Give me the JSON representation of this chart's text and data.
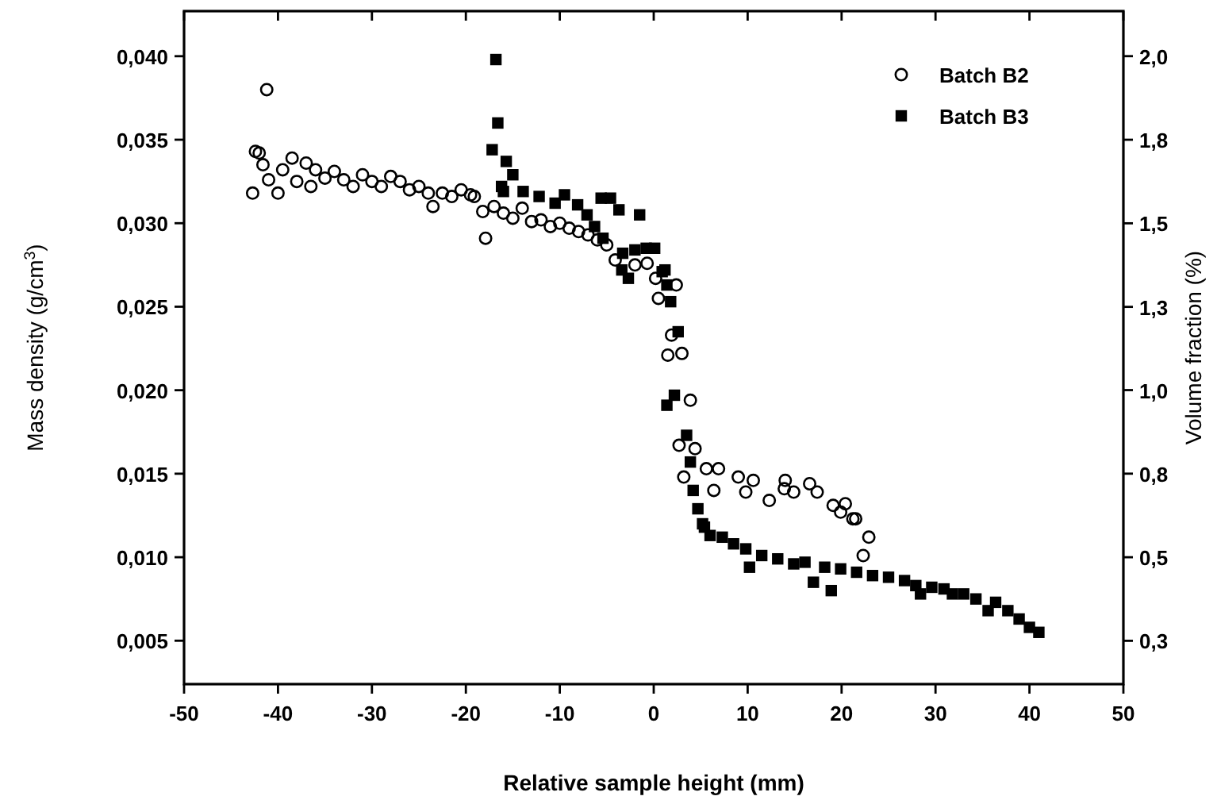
{
  "chart_data": {
    "type": "scatter",
    "xlabel": "Relative sample height (mm)",
    "ylabel": "Mass density (g/cm$^{3}$)",
    "y2label": "Volume fraction (%)",
    "xlim": [
      -50,
      50
    ],
    "xticks": [
      -50,
      -40,
      -30,
      -20,
      -10,
      0,
      10,
      20,
      30,
      40,
      50
    ],
    "ylim": [
      0.0024,
      0.0427
    ],
    "yticks": [
      {
        "value": 0.005,
        "label": "0,005"
      },
      {
        "value": 0.01,
        "label": "0,010"
      },
      {
        "value": 0.015,
        "label": "0,015"
      },
      {
        "value": 0.02,
        "label": "0,020"
      },
      {
        "value": 0.025,
        "label": "0,025"
      },
      {
        "value": 0.03,
        "label": "0,030"
      },
      {
        "value": 0.035,
        "label": "0,035"
      },
      {
        "value": 0.04,
        "label": "0,040"
      }
    ],
    "y2lim": [
      0.174,
      2.131
    ],
    "y2ticks": [
      {
        "value": 0.3,
        "label": "0,3"
      },
      {
        "value": 0.543,
        "label": "0,5"
      },
      {
        "value": 0.786,
        "label": "0,8"
      },
      {
        "value": 1.029,
        "label": "1,0"
      },
      {
        "value": 1.271,
        "label": "1,3"
      },
      {
        "value": 1.514,
        "label": "1,5"
      },
      {
        "value": 1.757,
        "label": "1,8"
      },
      {
        "value": 2.0,
        "label": "2,0"
      }
    ],
    "grid": false,
    "legend": "top right",
    "series": [
      {
        "name": "Batch B2",
        "color": "#000000",
        "marker": "circle",
        "x": [
          -42.7,
          -42.4,
          -42,
          -41.6,
          -41.2,
          -41,
          -40,
          -39.5,
          -38.5,
          -38,
          -37,
          -36.5,
          -36,
          -35,
          -34,
          -33,
          -32,
          -31,
          -30,
          -29,
          -28,
          -27,
          -26,
          -25,
          -24,
          -23.5,
          -22.5,
          -21.5,
          -20.5,
          -19.5,
          -19.1,
          -18.2,
          -17.9,
          -17,
          -16,
          -15,
          -14,
          -13,
          -12,
          -11,
          -10,
          -9,
          -8,
          -7,
          -6,
          -5,
          -4.1,
          -2,
          -0.7,
          0.2,
          0.5,
          2.4,
          1.9,
          1.5,
          3,
          3.9,
          2.7,
          3.2,
          4.4,
          5.6,
          6.4,
          6.9,
          9,
          9.8,
          10.6,
          12.3,
          13.9,
          14,
          14.9,
          16.6,
          17.4,
          19.1,
          19.9,
          20.4,
          21.2,
          21.5,
          22.9,
          22.3
        ],
        "values": [
          0.0318,
          0.0343,
          0.0342,
          0.0335,
          0.038,
          0.0326,
          0.0318,
          0.0332,
          0.0339,
          0.0325,
          0.0336,
          0.0322,
          0.0332,
          0.0327,
          0.0331,
          0.0326,
          0.0322,
          0.0329,
          0.0325,
          0.0322,
          0.0328,
          0.0325,
          0.032,
          0.0322,
          0.0318,
          0.031,
          0.0318,
          0.0316,
          0.032,
          0.0317,
          0.0316,
          0.0307,
          0.0291,
          0.031,
          0.0306,
          0.0303,
          0.0309,
          0.0301,
          0.0302,
          0.0298,
          0.03,
          0.0297,
          0.0295,
          0.0293,
          0.029,
          0.0287,
          0.0278,
          0.0275,
          0.0276,
          0.0267,
          0.0255,
          0.0263,
          0.0233,
          0.0221,
          0.0222,
          0.0194,
          0.0167,
          0.0148,
          0.0165,
          0.0153,
          0.014,
          0.0153,
          0.0148,
          0.0139,
          0.0146,
          0.0134,
          0.0141,
          0.0146,
          0.0139,
          0.0144,
          0.0139,
          0.0131,
          0.0127,
          0.0132,
          0.0123,
          0.0123,
          0.0112,
          0.0101
        ]
      },
      {
        "name": "Batch B3",
        "color": "#000000",
        "marker": "square",
        "x": [
          -16.8,
          -16.6,
          -17.2,
          -15.7,
          -15,
          -16.2,
          -16,
          -13.9,
          -12.2,
          -10.5,
          -9.5,
          -8.1,
          -7.1,
          -5.6,
          -4.6,
          -3.7,
          -1.5,
          -6.3,
          -5.4,
          -3.3,
          -2,
          -0.8,
          0.1,
          1.2,
          -3.4,
          -2.7,
          0.9,
          1.4,
          1.8,
          2.6,
          1.4,
          2.2,
          3.5,
          3.9,
          4.2,
          4.7,
          5.4,
          5.2,
          6,
          7.3,
          8.5,
          9.8,
          10.2,
          11.5,
          13.2,
          14.9,
          16.1,
          17,
          18.9,
          18.2,
          19.9,
          21.6,
          23.3,
          25,
          26.7,
          27.9,
          28.4,
          29.6,
          30.9,
          31.8,
          33,
          34.3,
          35.6,
          36.4,
          37.7,
          38.9,
          40,
          41
        ],
        "values": [
          0.0398,
          0.036,
          0.0344,
          0.0337,
          0.0329,
          0.0322,
          0.0319,
          0.0319,
          0.0316,
          0.0312,
          0.0317,
          0.0311,
          0.0305,
          0.0315,
          0.0315,
          0.0308,
          0.0305,
          0.0298,
          0.0291,
          0.0282,
          0.0284,
          0.0285,
          0.0285,
          0.0272,
          0.0272,
          0.0267,
          0.0271,
          0.0263,
          0.0253,
          0.0235,
          0.0191,
          0.0197,
          0.0173,
          0.0157,
          0.014,
          0.0129,
          0.0118,
          0.012,
          0.0113,
          0.0112,
          0.0108,
          0.0105,
          0.0094,
          0.0101,
          0.0099,
          0.0096,
          0.0097,
          0.0085,
          0.008,
          0.0094,
          0.0093,
          0.0091,
          0.0089,
          0.0088,
          0.0086,
          0.0083,
          0.0078,
          0.0082,
          0.0081,
          0.0078,
          0.0078,
          0.0075,
          0.0068,
          0.0073,
          0.0068,
          0.0063,
          0.0058,
          0.0055
        ]
      }
    ]
  }
}
